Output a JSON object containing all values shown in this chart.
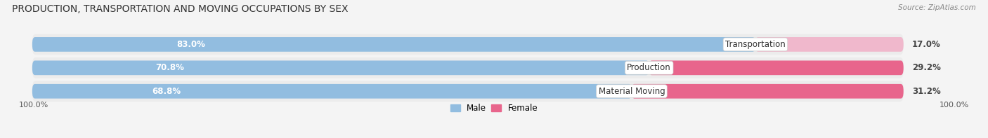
{
  "title": "PRODUCTION, TRANSPORTATION AND MOVING OCCUPATIONS BY SEX",
  "source": "Source: ZipAtlas.com",
  "categories": [
    "Transportation",
    "Production",
    "Material Moving"
  ],
  "male_pct": [
    83.0,
    70.8,
    68.8
  ],
  "female_pct": [
    17.0,
    29.2,
    31.2
  ],
  "male_color": "#92bde0",
  "female_color_transportation": "#f0b8cc",
  "female_color_production": "#e8658c",
  "female_color_material": "#e8658c",
  "male_label_color": "#ffffff",
  "female_label_color": "#555555",
  "bar_height": 0.62,
  "background_color": "#f4f4f4",
  "bar_bg_color": "#e0e0e8",
  "row_bg_color": "#ececec",
  "title_fontsize": 10,
  "source_fontsize": 7.5,
  "label_fontsize": 8.5,
  "cat_fontsize": 8.5,
  "axis_label_fontsize": 8,
  "legend_fontsize": 8.5,
  "x_left_label": "100.0%",
  "x_right_label": "100.0%",
  "female_colors": [
    "#f0b8cc",
    "#e8658c",
    "#e8658c"
  ]
}
